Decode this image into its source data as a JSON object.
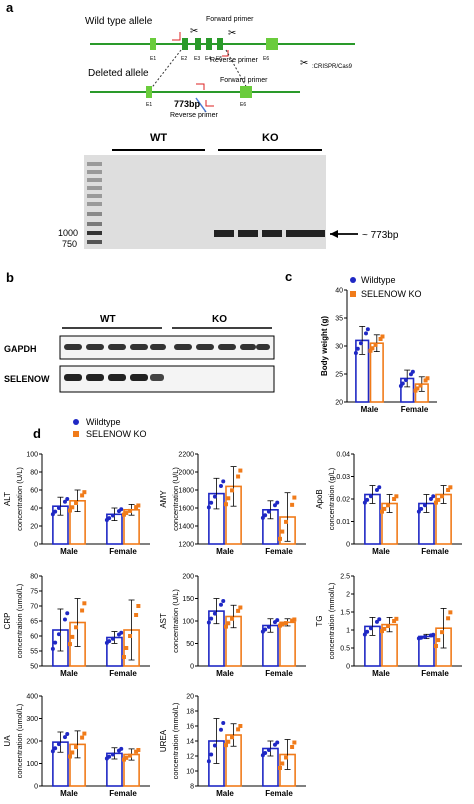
{
  "panel_a": {
    "letter": "a",
    "wt_allele": "Wild type allele",
    "deleted_allele": "Deleted allele",
    "forward_primer": "Forward primer",
    "reverse_primer": "Reverse primer",
    "forward_primer2": "Forward primer",
    "reverse_primer2": "Reverse primer",
    "crispr": ":CRISPR/Cas9",
    "bp773": "773bp",
    "exons_wt": [
      "E1",
      "E2",
      "E3",
      "E4",
      "E5",
      "E6"
    ],
    "exons_del": [
      "E1",
      "E6"
    ],
    "gel_wt": "WT",
    "gel_ko": "KO",
    "ladder_1000": "1000",
    "ladder_750": "750",
    "band_label": "~ 773bp"
  },
  "panel_b": {
    "letter": "b",
    "wt": "WT",
    "ko": "KO",
    "row1": "GAPDH",
    "row2": "SELENOW"
  },
  "panel_c": {
    "letter": "c",
    "legend": [
      "Wildtype",
      "SELENOW KO"
    ],
    "colors": {
      "wildtype": "#1f28c4",
      "ko": "#f07b1a"
    }
  },
  "panel_d": {
    "letter": "d",
    "legend": [
      "Wildtype",
      "SELENOW KO"
    ]
  },
  "chart_data": [
    {
      "type": "bar",
      "panel": "c",
      "ylabel": "Body weight (g)",
      "ylim": [
        20,
        40
      ],
      "ticks": [
        20,
        25,
        30,
        35,
        40
      ],
      "categories": [
        "Male",
        "Female"
      ],
      "series": [
        {
          "name": "Wildtype",
          "values": [
            31,
            24.2
          ],
          "err": [
            2.5,
            1.5
          ]
        },
        {
          "name": "SELENOW KO",
          "values": [
            30.5,
            23.2
          ],
          "err": [
            1.5,
            1.3
          ]
        }
      ]
    },
    {
      "type": "bar",
      "ylabel": "ALT",
      "unit": "concentration (U/L)",
      "ylim": [
        0,
        100
      ],
      "ticks": [
        0,
        20,
        40,
        60,
        80,
        100
      ],
      "categories": [
        "Male",
        "Female"
      ],
      "series": [
        {
          "name": "Wildtype",
          "values": [
            42,
            33
          ],
          "err": [
            10,
            7
          ]
        },
        {
          "name": "SELENOW KO",
          "values": [
            48,
            38
          ],
          "err": [
            12,
            6
          ]
        }
      ]
    },
    {
      "type": "bar",
      "ylabel": "AMY",
      "unit": "concentration (U/L)",
      "ylim": [
        1200,
        2200
      ],
      "ticks": [
        1200,
        1400,
        1600,
        1800,
        2000,
        2200
      ],
      "categories": [
        "Male",
        "Female"
      ],
      "series": [
        {
          "name": "Wildtype",
          "values": [
            1760,
            1580
          ],
          "err": [
            170,
            100
          ]
        },
        {
          "name": "SELENOW KO",
          "values": [
            1840,
            1500
          ],
          "err": [
            220,
            270
          ]
        }
      ]
    },
    {
      "type": "bar",
      "ylabel": "ApoB",
      "unit": "concentration (g/L)",
      "ylim": [
        0,
        0.04
      ],
      "ticks": [
        0,
        0.01,
        0.02,
        0.03,
        0.04
      ],
      "categories": [
        "Male",
        "Female"
      ],
      "series": [
        {
          "name": "Wildtype",
          "values": [
            0.022,
            0.018
          ],
          "err": [
            0.004,
            0.004
          ]
        },
        {
          "name": "SELENOW KO",
          "values": [
            0.018,
            0.022
          ],
          "err": [
            0.004,
            0.004
          ]
        }
      ]
    },
    {
      "type": "bar",
      "ylabel": "CRP",
      "unit": "concentration (umol/L)",
      "ylim": [
        50,
        80
      ],
      "ticks": [
        50,
        55,
        60,
        65,
        70,
        75,
        80
      ],
      "categories": [
        "Male",
        "Female"
      ],
      "series": [
        {
          "name": "Wildtype",
          "values": [
            62,
            59.5
          ],
          "err": [
            7,
            2
          ]
        },
        {
          "name": "SELENOW KO",
          "values": [
            64.5,
            62
          ],
          "err": [
            8,
            10
          ]
        }
      ]
    },
    {
      "type": "bar",
      "ylabel": "AST",
      "unit": "concentration (U/L)",
      "ylim": [
        0,
        200
      ],
      "ticks": [
        0,
        50,
        100,
        150,
        200
      ],
      "categories": [
        "Male",
        "Female"
      ],
      "series": [
        {
          "name": "Wildtype",
          "values": [
            122,
            90
          ],
          "err": [
            28,
            15
          ]
        },
        {
          "name": "SELENOW KO",
          "values": [
            110,
            97
          ],
          "err": [
            25,
            8
          ]
        }
      ]
    },
    {
      "type": "bar",
      "ylabel": "TG",
      "unit": "concentration (mmol/L)",
      "ylim": [
        0,
        2.5
      ],
      "ticks": [
        0,
        0.5,
        1,
        1.5,
        2,
        2.5
      ],
      "categories": [
        "Male",
        "Female"
      ],
      "series": [
        {
          "name": "Wildtype",
          "values": [
            1.1,
            0.82
          ],
          "err": [
            0.25,
            0.06
          ]
        },
        {
          "name": "SELENOW KO",
          "values": [
            1.15,
            1.05
          ],
          "err": [
            0.2,
            0.55
          ]
        }
      ]
    },
    {
      "type": "bar",
      "ylabel": "UA",
      "unit": "concentration (umol/L)",
      "ylim": [
        0,
        400
      ],
      "ticks": [
        0,
        100,
        200,
        300,
        400
      ],
      "categories": [
        "Male",
        "Female"
      ],
      "series": [
        {
          "name": "Wildtype",
          "values": [
            195,
            145
          ],
          "err": [
            45,
            25
          ]
        },
        {
          "name": "SELENOW KO",
          "values": [
            185,
            140
          ],
          "err": [
            60,
            25
          ]
        }
      ]
    },
    {
      "type": "bar",
      "ylabel": "UREA",
      "unit": "concentration (mmol/L)",
      "ylim": [
        8,
        20
      ],
      "ticks": [
        8,
        10,
        12,
        14,
        16,
        18,
        20
      ],
      "categories": [
        "Male",
        "Female"
      ],
      "series": [
        {
          "name": "Wildtype",
          "values": [
            14,
            13
          ],
          "err": [
            3,
            1
          ]
        },
        {
          "name": "SELENOW KO",
          "values": [
            14.8,
            12.2
          ],
          "err": [
            1.5,
            2
          ]
        }
      ]
    }
  ]
}
